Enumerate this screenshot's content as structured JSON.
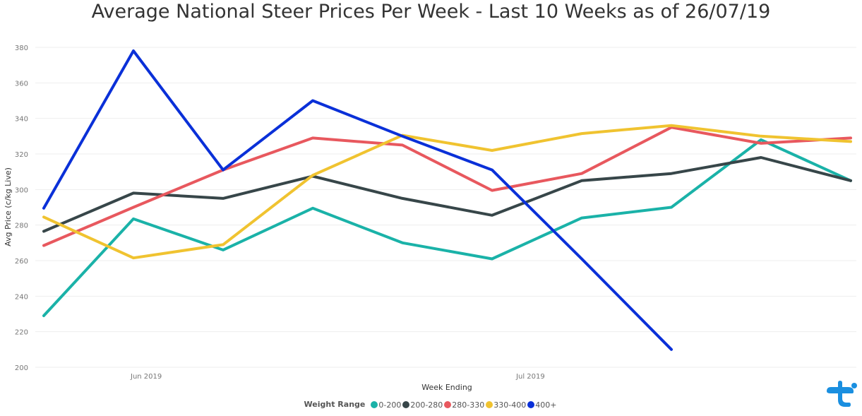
{
  "chart_data": {
    "type": "line",
    "title": "Average National Steer Prices Per Week - Last 10 Weeks as of 26/07/19",
    "xlabel": "Week Ending",
    "ylabel": "Avg Price (c/kg Live)",
    "ylim": [
      200,
      380
    ],
    "yticks": [
      200,
      220,
      240,
      260,
      280,
      300,
      320,
      340,
      360,
      380
    ],
    "x": [
      "2019-05-24",
      "2019-05-31",
      "2019-06-07",
      "2019-06-14",
      "2019-06-21",
      "2019-06-28",
      "2019-07-05",
      "2019-07-12",
      "2019-07-19",
      "2019-07-26"
    ],
    "xtick_labels": [
      {
        "label": "Jun 2019",
        "at": "2019-06-01"
      },
      {
        "label": "Jul 2019",
        "at": "2019-07-01"
      }
    ],
    "grid": true,
    "legend_title": "Weight Range",
    "legend_position": "bottom",
    "series": [
      {
        "name": "0-200",
        "color": "#1AB2A8",
        "values": [
          229,
          283.5,
          266,
          289.5,
          270,
          261,
          284,
          290,
          328,
          305
        ]
      },
      {
        "name": "200-280",
        "color": "#374649",
        "values": [
          276.5,
          298,
          295,
          307.5,
          295,
          285.5,
          305,
          309,
          318,
          305
        ]
      },
      {
        "name": "280-330",
        "color": "#E8585E",
        "values": [
          268.5,
          290,
          311,
          329,
          325,
          299.5,
          309,
          335,
          326,
          329
        ]
      },
      {
        "name": "330-400",
        "color": "#F0C330",
        "values": [
          284.5,
          261.5,
          269,
          308,
          330.5,
          322,
          331.5,
          336,
          330,
          327
        ]
      },
      {
        "name": "400+",
        "color": "#0A30D8",
        "values": [
          289.5,
          378,
          311,
          350,
          330,
          311,
          261,
          210,
          null,
          null
        ]
      }
    ]
  },
  "logo": {
    "name": "brand-logo-icon",
    "color": "#1A8FE0"
  }
}
